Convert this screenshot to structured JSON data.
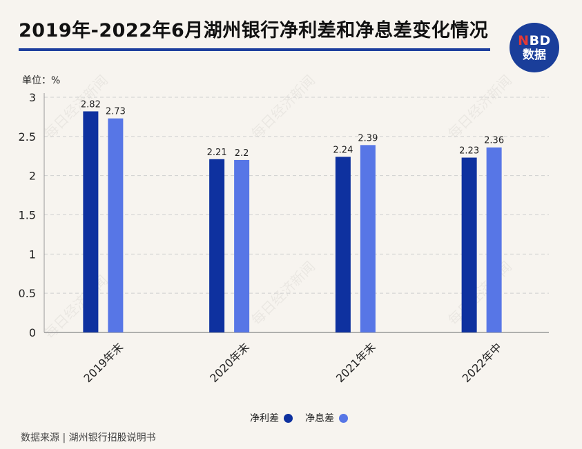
{
  "header": {
    "title": "2019年-2022年6月湖州银行净利差和净息差变化情况",
    "logo_brand_n": "N",
    "logo_brand_rest": "BD",
    "logo_sub": "数据"
  },
  "unit_label": "单位：%",
  "footer": {
    "source": "数据来源 | 湖州银行招股说明书"
  },
  "watermark_text": "每日经济新闻",
  "chart_data": {
    "type": "bar",
    "title": "2019年-2022年6月湖州银行净利差和净息差变化情况",
    "xlabel": "",
    "ylabel": "",
    "categories": [
      "2019年末",
      "2020年末",
      "2021年末",
      "2022年中"
    ],
    "series": [
      {
        "name": "净利差",
        "values": [
          2.82,
          2.21,
          2.24,
          2.23
        ],
        "color": "#0e319f"
      },
      {
        "name": "净息差",
        "values": [
          2.73,
          2.2,
          2.39,
          2.36
        ],
        "color": "#5776e6"
      }
    ],
    "value_labels": [
      [
        "2.82",
        "2.21",
        "2.24",
        "2.23"
      ],
      [
        "2.73",
        "2.2",
        "2.39",
        "2.36"
      ]
    ],
    "ylim": [
      0,
      3
    ],
    "yticks": [
      "0",
      "0.5",
      "1",
      "1.5",
      "2",
      "2.5",
      "3"
    ],
    "grid": true,
    "legend_position": "bottom"
  }
}
